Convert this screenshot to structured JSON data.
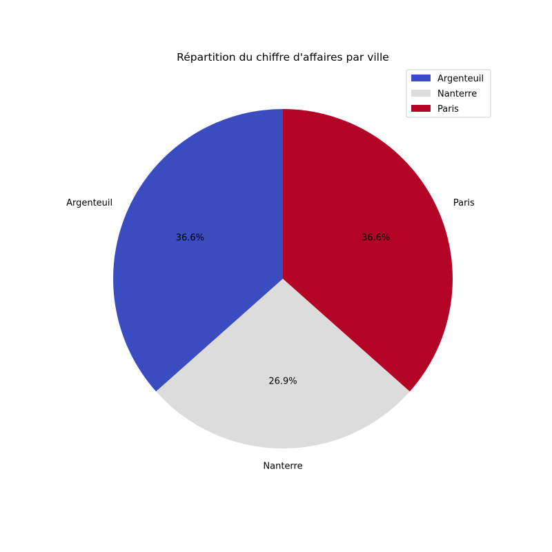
{
  "chart_data": {
    "type": "pie",
    "title": "Répartition du chiffre d'affaires par ville",
    "slices": [
      {
        "label": "Argenteuil",
        "value": 36.6,
        "pct_label": "36.6%",
        "color": "#3b4cc0"
      },
      {
        "label": "Nanterre",
        "value": 26.9,
        "pct_label": "26.9%",
        "color": "#dcdcdc"
      },
      {
        "label": "Paris",
        "value": 36.6,
        "pct_label": "36.6%",
        "color": "#b40426"
      }
    ],
    "start_angle_deg": 90,
    "direction": "counterclockwise",
    "legend": {
      "placement": "top-right",
      "entries": [
        "Argenteuil",
        "Nanterre",
        "Paris"
      ]
    }
  }
}
